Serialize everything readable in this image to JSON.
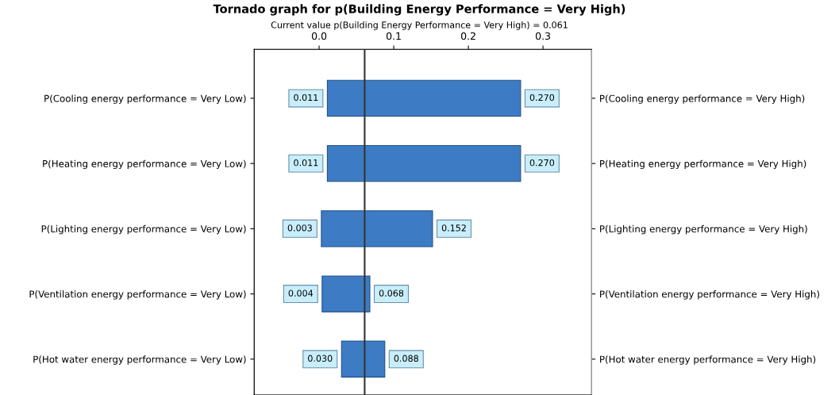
{
  "chart_data": {
    "type": "bar",
    "orientation": "horizontal",
    "title": "Tornado graph for p(Building Energy Performance = Very High)",
    "subtitle": "Current value p(Building Energy Performance = Very High) = 0.061",
    "categories": [
      "P(Cooling energy performance = Very Low)",
      "P(Heating energy performance = Very Low)",
      "P(Lighting energy performance = Very Low)",
      "P(Ventilation energy performance = Very Low)",
      "P(Hot water energy performance = Very Low)"
    ],
    "y2_categories": [
      "P(Cooling energy performance = Very High)",
      "P(Heating energy performance = Very High)",
      "P(Lighting energy performance = Very High)",
      "P(Ventilation energy performance = Very High)",
      "P(Hot water energy performance = Very High)"
    ],
    "base": [
      0.011,
      0.011,
      0.003,
      0.004,
      0.03
    ],
    "values": [
      0.259,
      0.259,
      0.149,
      0.064,
      0.058
    ],
    "color": "#3d7cc4",
    "xlim": [
      -0.087,
      0.365
    ],
    "xticks": [
      {
        "value": 0,
        "label": "0.0"
      },
      {
        "value": 0.1,
        "label": "0.1"
      },
      {
        "value": 0.2,
        "label": "0.2"
      },
      {
        "value": 0.3,
        "label": "0.3"
      }
    ],
    "ref_lines": [
      {
        "axis": "x",
        "value": 0.061,
        "label": null,
        "color": "#333333"
      }
    ],
    "annotations": [
      {
        "text": "0.011",
        "x": 0.011,
        "y": "P(Cooling energy performance = Very Low)"
      },
      {
        "text": "0.270",
        "x": 0.27,
        "y": "P(Cooling energy performance = Very Low)"
      },
      {
        "text": "0.011",
        "x": 0.011,
        "y": "P(Heating energy performance = Very Low)"
      },
      {
        "text": "0.270",
        "x": 0.27,
        "y": "P(Heating energy performance = Very Low)"
      },
      {
        "text": "0.003",
        "x": 0.003,
        "y": "P(Lighting energy performance = Very Low)"
      },
      {
        "text": "0.152",
        "x": 0.152,
        "y": "P(Lighting energy performance = Very Low)"
      },
      {
        "text": "0.004",
        "x": 0.004,
        "y": "P(Ventilation energy performance = Very Low)"
      },
      {
        "text": "0.068",
        "x": 0.068,
        "y": "P(Ventilation energy performance = Very Low)"
      },
      {
        "text": "0.030",
        "x": 0.03,
        "y": "P(Hot water energy performance = Very Low)"
      },
      {
        "text": "0.088",
        "x": 0.088,
        "y": "P(Hot water energy performance = Very Low)"
      }
    ],
    "grid": false,
    "legend": false
  }
}
